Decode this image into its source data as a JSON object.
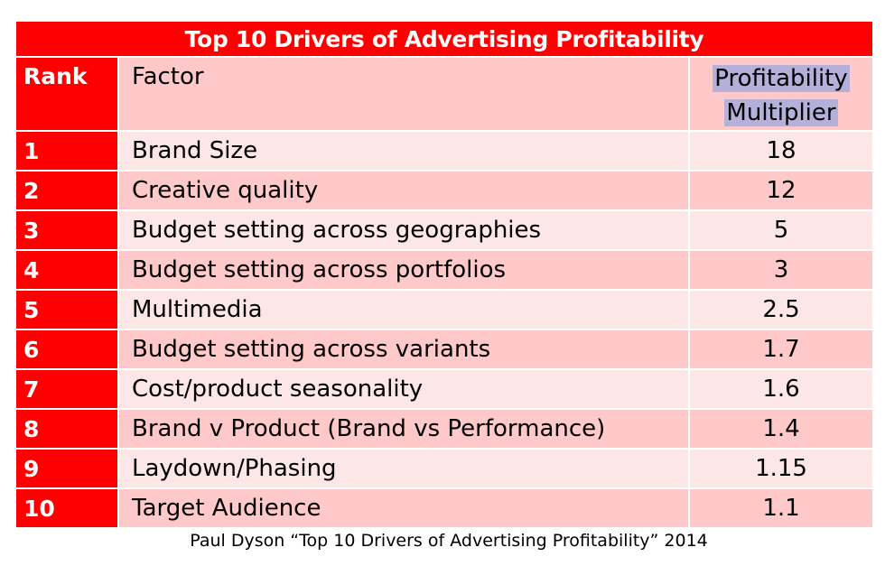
{
  "title": "Top 10 Drivers of Advertising Profitability",
  "headers": {
    "rank": "Rank",
    "factor": "Factor",
    "multiplier_line1": "Profitability",
    "multiplier_line2": "Multiplier"
  },
  "rows": [
    {
      "rank": "1",
      "factor": "Brand Size",
      "multiplier": "18"
    },
    {
      "rank": "2",
      "factor": "Creative quality",
      "multiplier": "12"
    },
    {
      "rank": "3",
      "factor": "Budget setting across geographies",
      "multiplier": "5"
    },
    {
      "rank": "4",
      "factor": "Budget setting across portfolios",
      "multiplier": "3"
    },
    {
      "rank": "5",
      "factor": "Multimedia",
      "multiplier": "2.5"
    },
    {
      "rank": "6",
      "factor": "Budget setting across variants",
      "multiplier": "1.7"
    },
    {
      "rank": "7",
      "factor": "Cost/product seasonality",
      "multiplier": "1.6"
    },
    {
      "rank": "8",
      "factor": "Brand v Product (Brand vs Performance)",
      "multiplier": "1.4"
    },
    {
      "rank": "9",
      "factor": "Laydown/Phasing",
      "multiplier": "1.15"
    },
    {
      "rank": "10",
      "factor": "Target Audience",
      "multiplier": "1.1"
    }
  ],
  "caption": "Paul Dyson “Top 10 Drivers of Advertising Profitability” 2014",
  "colors": {
    "header_red": "#ff0000",
    "row_light": "#fde6e6",
    "row_dark": "#ffc9c9",
    "highlight": "#b4b0d9"
  }
}
